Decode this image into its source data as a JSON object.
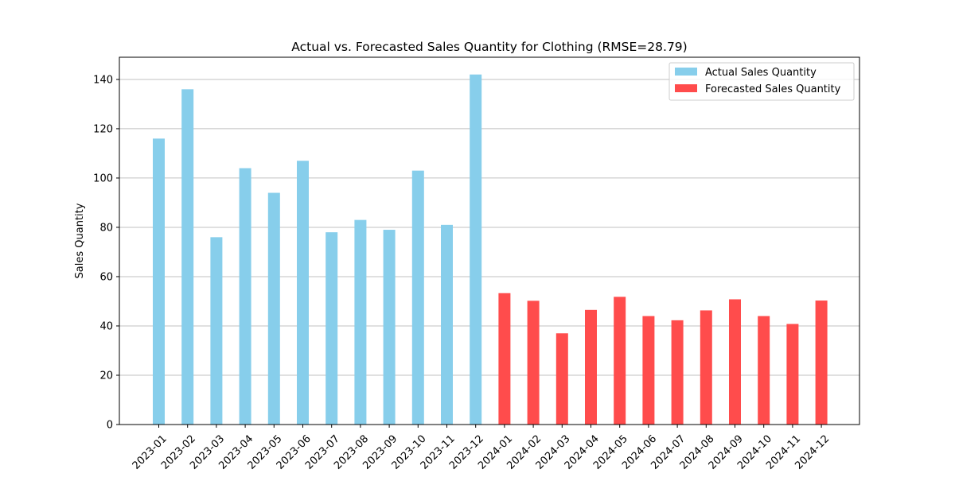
{
  "chart_data": {
    "type": "bar",
    "title": "Actual vs. Forecasted Sales Quantity for Clothing (RMSE=28.79)",
    "xlabel": "",
    "ylabel": "Sales Quantity",
    "ylim": [
      0,
      149
    ],
    "yticks": [
      0,
      20,
      40,
      60,
      80,
      100,
      120,
      140
    ],
    "grid": "horizontal",
    "legend_position": "top-right",
    "categories": [
      "2023-01",
      "2023-02",
      "2023-03",
      "2023-04",
      "2023-05",
      "2023-06",
      "2023-07",
      "2023-08",
      "2023-09",
      "2023-10",
      "2023-11",
      "2023-12",
      "2024-01",
      "2024-02",
      "2024-03",
      "2024-04",
      "2024-05",
      "2024-06",
      "2024-07",
      "2024-08",
      "2024-09",
      "2024-10",
      "2024-11",
      "2024-12"
    ],
    "series": [
      {
        "name": "Actual Sales Quantity",
        "color": "#87ceeb",
        "x": [
          "2023-01",
          "2023-02",
          "2023-03",
          "2023-04",
          "2023-05",
          "2023-06",
          "2023-07",
          "2023-08",
          "2023-09",
          "2023-10",
          "2023-11",
          "2023-12"
        ],
        "values": [
          116,
          136,
          76,
          104,
          94,
          107,
          78,
          83,
          79,
          103,
          81,
          142
        ]
      },
      {
        "name": "Forecasted Sales Quantity",
        "color": "#ff4c4c",
        "x": [
          "2024-01",
          "2024-02",
          "2024-03",
          "2024-04",
          "2024-05",
          "2024-06",
          "2024-07",
          "2024-08",
          "2024-09",
          "2024-10",
          "2024-11",
          "2024-12"
        ],
        "values": [
          53.3,
          50.2,
          37.0,
          46.5,
          51.8,
          44.0,
          42.3,
          46.3,
          50.8,
          44.0,
          40.8,
          50.3
        ]
      }
    ]
  }
}
